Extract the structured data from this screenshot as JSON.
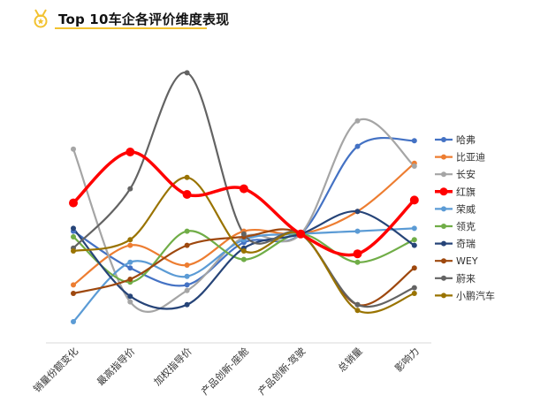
{
  "header": {
    "icon": "medal-icon",
    "title": "Top 10车企各评价维度表现",
    "accent_color": "#f2c230"
  },
  "chart_data": {
    "type": "line",
    "smooth": true,
    "title": "Top 10车企各评价维度表现",
    "xlabel": "",
    "ylabel": "",
    "ylim": [
      0,
      100
    ],
    "grid": false,
    "legend_position": "right",
    "categories": [
      "销量份额变化",
      "最高指导价",
      "加权指导价",
      "产品创新-座舱",
      "产品创新-驾驶",
      "总销量",
      "影响力"
    ],
    "series": [
      {
        "name": "哈弗",
        "color": "#4472C4",
        "highlight": false,
        "values": [
          37,
          24,
          18,
          33,
          36,
          67,
          69
        ]
      },
      {
        "name": "比亚迪",
        "color": "#ED7D31",
        "highlight": false,
        "values": [
          18,
          32,
          25,
          37,
          36,
          44,
          61
        ]
      },
      {
        "name": "长安",
        "color": "#A5A5A5",
        "highlight": false,
        "values": [
          66,
          12,
          16,
          35,
          36,
          76,
          60
        ]
      },
      {
        "name": "红旗",
        "color": "#FF0000",
        "highlight": true,
        "values": [
          47,
          65,
          50,
          52,
          36,
          29,
          48
        ]
      },
      {
        "name": "荣威",
        "color": "#5B9BD5",
        "highlight": false,
        "values": [
          5,
          26,
          21,
          34,
          36,
          37,
          38
        ]
      },
      {
        "name": "领克",
        "color": "#70AD47",
        "highlight": false,
        "values": [
          35,
          19,
          37,
          27,
          36,
          26,
          34
        ]
      },
      {
        "name": "奇瑞",
        "color": "#264478",
        "highlight": false,
        "values": [
          38,
          14,
          11,
          31,
          36,
          44,
          32
        ]
      },
      {
        "name": "WEY",
        "color": "#9E480E",
        "highlight": false,
        "values": [
          15,
          20,
          32,
          35,
          36,
          11,
          24
        ]
      },
      {
        "name": "蔚来",
        "color": "#636363",
        "highlight": false,
        "values": [
          31,
          52,
          93,
          36,
          36,
          11,
          17
        ]
      },
      {
        "name": "小鹏汽车",
        "color": "#997300",
        "highlight": false,
        "values": [
          30,
          34,
          56,
          30,
          36,
          9,
          15
        ]
      }
    ]
  }
}
